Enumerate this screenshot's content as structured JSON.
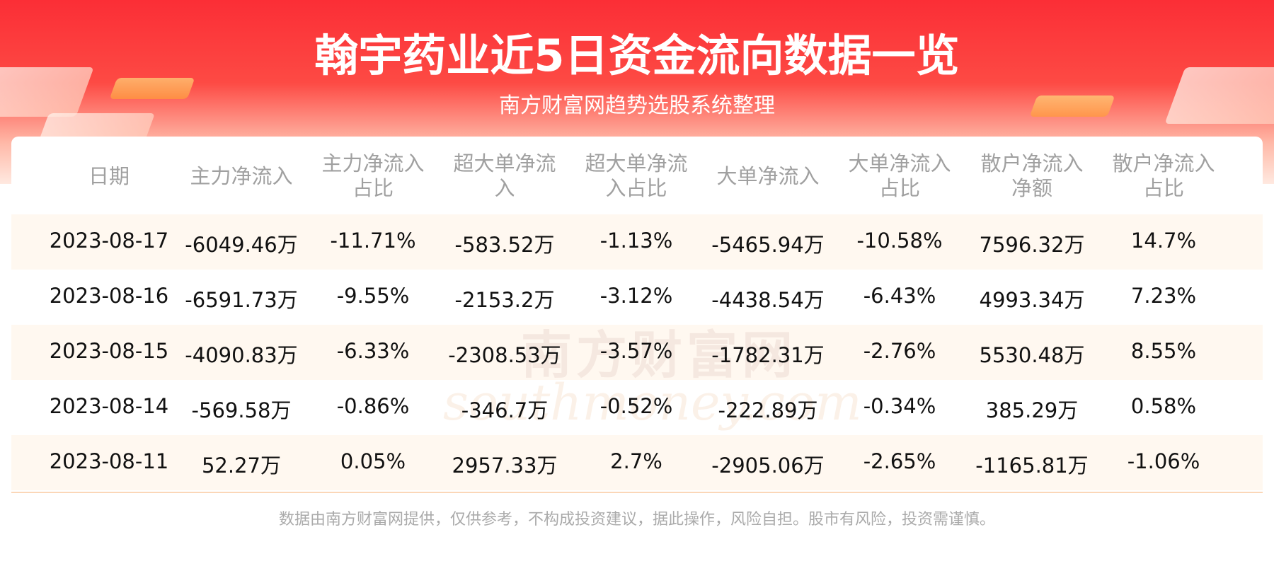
{
  "header": {
    "title": "翰宇药业近5日资金流向数据一览",
    "subtitle": "南方财富网趋势选股系统整理"
  },
  "table": {
    "headers": [
      "日期",
      "主力净流入",
      "主力净流入占比",
      "超大单净流入",
      "超大单净流入占比",
      "大单净流入",
      "大单净流入占比",
      "散户净流入净额",
      "散户净流入占比"
    ],
    "rows": [
      [
        "2023-08-17",
        "-6049.46万",
        "-11.71%",
        "-583.52万",
        "-1.13%",
        "-5465.94万",
        "-10.58%",
        "7596.32万",
        "14.7%"
      ],
      [
        "2023-08-16",
        "-6591.73万",
        "-9.55%",
        "-2153.2万",
        "-3.12%",
        "-4438.54万",
        "-6.43%",
        "4993.34万",
        "7.23%"
      ],
      [
        "2023-08-15",
        "-4090.83万",
        "-6.33%",
        "-2308.53万",
        "-3.57%",
        "-1782.31万",
        "-2.76%",
        "5530.48万",
        "8.55%"
      ],
      [
        "2023-08-14",
        "-569.58万",
        "-0.86%",
        "-346.7万",
        "-0.52%",
        "-222.89万",
        "-0.34%",
        "385.29万",
        "0.58%"
      ],
      [
        "2023-08-11",
        "52.27万",
        "0.05%",
        "2957.33万",
        "2.7%",
        "-2905.06万",
        "-2.65%",
        "-1165.81万",
        "-1.06%"
      ]
    ]
  },
  "watermark": {
    "cn": "南方财富网",
    "en": "southmoney.com"
  },
  "footer": {
    "disclaimer": "数据由南方财富网提供，仅供参考，不构成投资建议，据此操作，风险自担。股市有风险，投资需谨慎。"
  }
}
